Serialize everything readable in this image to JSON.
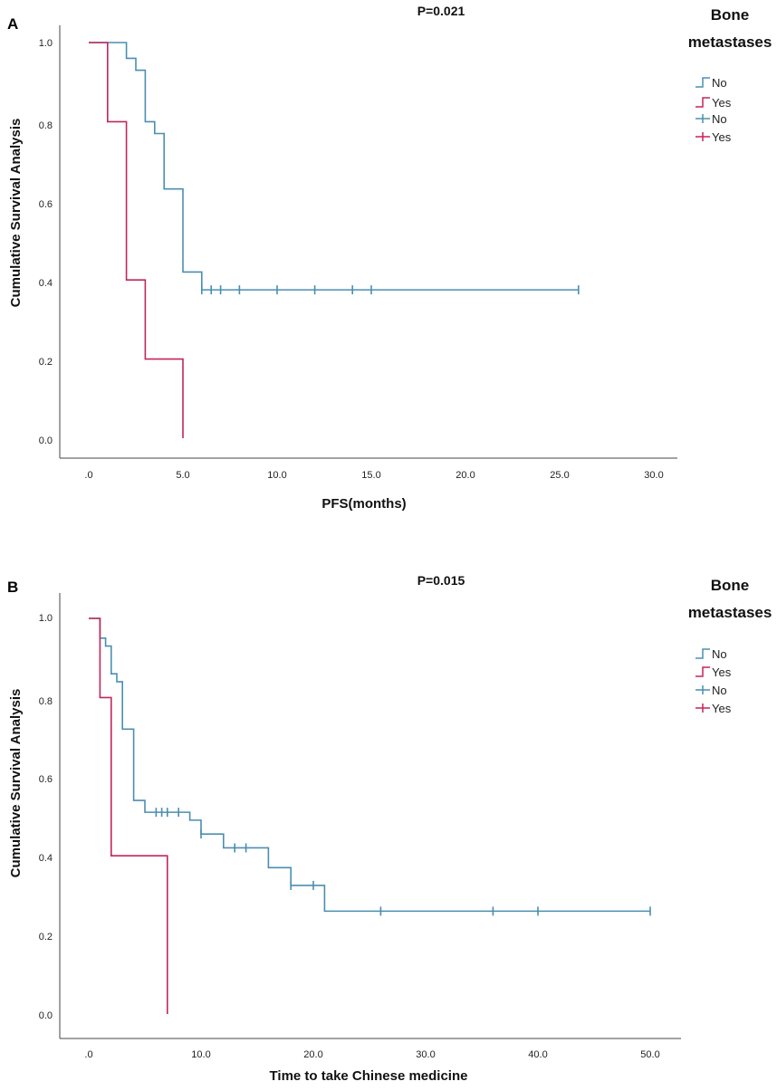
{
  "colors": {
    "no": "#4a8fb0",
    "yes": "#c2265a",
    "axis": "#444444"
  },
  "chart_data": [
    {
      "type": "line",
      "panel": "A",
      "title": "P=0.021",
      "xlabel": "PFS(months)",
      "ylabel": "Cumulative Survival Analysis",
      "xlim": [
        0,
        30
      ],
      "ylim": [
        0,
        1
      ],
      "xticks": [
        0,
        5,
        10,
        15,
        20,
        25,
        30
      ],
      "xtick_labels": [
        ".0",
        "5.0",
        "10.0",
        "15.0",
        "20.0",
        "25.0",
        "30.0"
      ],
      "yticks": [
        0,
        0.2,
        0.4,
        0.6,
        0.8,
        1.0
      ],
      "ytick_labels": [
        "0.0",
        "0.2",
        "0.4",
        "0.6",
        "0.8",
        "1.0"
      ],
      "legend": {
        "title_line1": "Bone",
        "title_line2": "metastases",
        "entries": [
          "No",
          "Yes",
          "No",
          "Yes"
        ]
      },
      "series": [
        {
          "name": "No",
          "color_key": "no",
          "steps": [
            [
              0,
              1.0
            ],
            [
              2,
              0.96
            ],
            [
              2.5,
              0.93
            ],
            [
              3,
              0.8
            ],
            [
              3.5,
              0.77
            ],
            [
              4,
              0.63
            ],
            [
              5,
              0.42
            ],
            [
              6,
              0.375
            ],
            [
              26,
              0.375
            ]
          ],
          "censored": [
            [
              6,
              0.375
            ],
            [
              6.5,
              0.375
            ],
            [
              7,
              0.375
            ],
            [
              8,
              0.375
            ],
            [
              10,
              0.375
            ],
            [
              12,
              0.375
            ],
            [
              14,
              0.375
            ],
            [
              15,
              0.375
            ],
            [
              26,
              0.375
            ]
          ]
        },
        {
          "name": "Yes",
          "color_key": "yes",
          "steps": [
            [
              0,
              1.0
            ],
            [
              1,
              0.8
            ],
            [
              2,
              0.4
            ],
            [
              3,
              0.2
            ],
            [
              5,
              0.0
            ]
          ],
          "censored": []
        }
      ]
    },
    {
      "type": "line",
      "panel": "B",
      "title": "P=0.015",
      "xlabel": "Time to take Chinese medicine",
      "ylabel": "Cumulative Survival Analysis",
      "xlim": [
        0,
        50
      ],
      "ylim": [
        0,
        1
      ],
      "xticks": [
        0,
        10,
        20,
        30,
        40,
        50
      ],
      "xtick_labels": [
        ".0",
        "10.0",
        "20.0",
        "30.0",
        "40.0",
        "50.0"
      ],
      "yticks": [
        0,
        0.2,
        0.4,
        0.6,
        0.8,
        1.0
      ],
      "ytick_labels": [
        "0.0",
        "0.2",
        "0.4",
        "0.6",
        "0.8",
        "1.0"
      ],
      "legend": {
        "title_line1": "Bone",
        "title_line2": "metastases",
        "entries": [
          "No",
          "Yes",
          "No",
          "Yes"
        ]
      },
      "series": [
        {
          "name": "No",
          "color_key": "no",
          "steps": [
            [
              0,
              1.0
            ],
            [
              1,
              0.95
            ],
            [
              1.5,
              0.93
            ],
            [
              2,
              0.86
            ],
            [
              2.5,
              0.84
            ],
            [
              3,
              0.72
            ],
            [
              4,
              0.54
            ],
            [
              5,
              0.51
            ],
            [
              9,
              0.49
            ],
            [
              10,
              0.455
            ],
            [
              12,
              0.42
            ],
            [
              16,
              0.37
            ],
            [
              18,
              0.325
            ],
            [
              21,
              0.26
            ],
            [
              50,
              0.26
            ]
          ],
          "censored": [
            [
              6,
              0.51
            ],
            [
              6.5,
              0.51
            ],
            [
              7,
              0.51
            ],
            [
              8,
              0.51
            ],
            [
              10,
              0.455
            ],
            [
              13,
              0.42
            ],
            [
              14,
              0.42
            ],
            [
              18,
              0.325
            ],
            [
              20,
              0.325
            ],
            [
              26,
              0.26
            ],
            [
              36,
              0.26
            ],
            [
              40,
              0.26
            ],
            [
              50,
              0.26
            ]
          ]
        },
        {
          "name": "Yes",
          "color_key": "yes",
          "steps": [
            [
              0,
              1.0
            ],
            [
              1,
              0.8
            ],
            [
              2,
              0.4
            ],
            [
              7,
              0.0
            ]
          ],
          "censored": []
        }
      ]
    }
  ]
}
